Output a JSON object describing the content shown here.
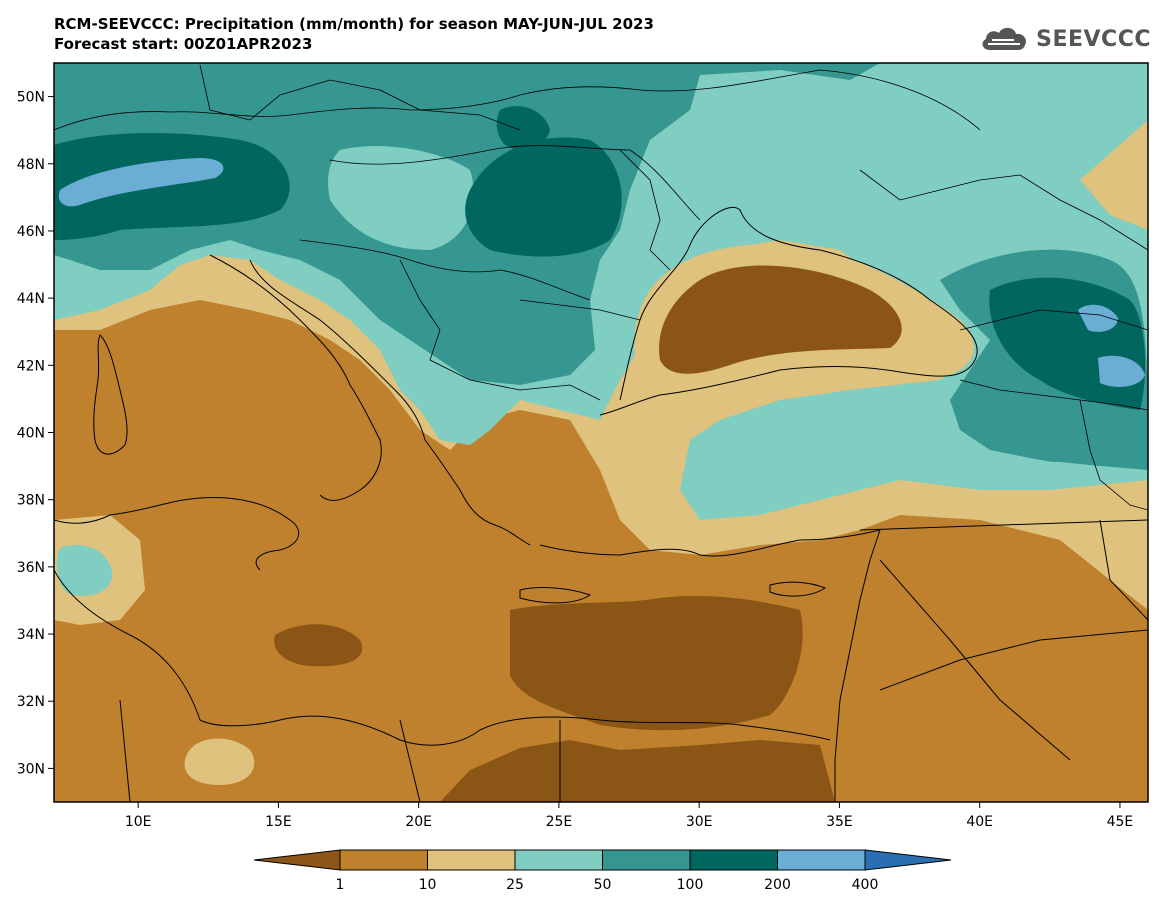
{
  "header": {
    "title_line1": "RCM-SEEVCCC: Precipitation (mm/month) for season MAY-JUN-JUL 2023",
    "title_line2": "Forecast start: 00Z01APR2023"
  },
  "logo": {
    "text": "SEEVCCC",
    "icon": "cloud-icon"
  },
  "map": {
    "lat_labels": [
      "50N",
      "48N",
      "46N",
      "44N",
      "42N",
      "40N",
      "38N",
      "36N",
      "34N",
      "32N",
      "30N"
    ],
    "lon_labels": [
      "10E",
      "15E",
      "20E",
      "25E",
      "30E",
      "35E",
      "40E",
      "45E"
    ],
    "lat_range": [
      29,
      51
    ],
    "lon_range": [
      7,
      46
    ]
  },
  "legend": {
    "ticks": [
      "1",
      "10",
      "25",
      "50",
      "100",
      "200",
      "400"
    ],
    "colors": [
      "#8b5515",
      "#bf812d",
      "#dfc27d",
      "#80cdc1",
      "#35978f",
      "#01665e",
      "#6aaed6",
      "#2b6fb2"
    ]
  }
}
